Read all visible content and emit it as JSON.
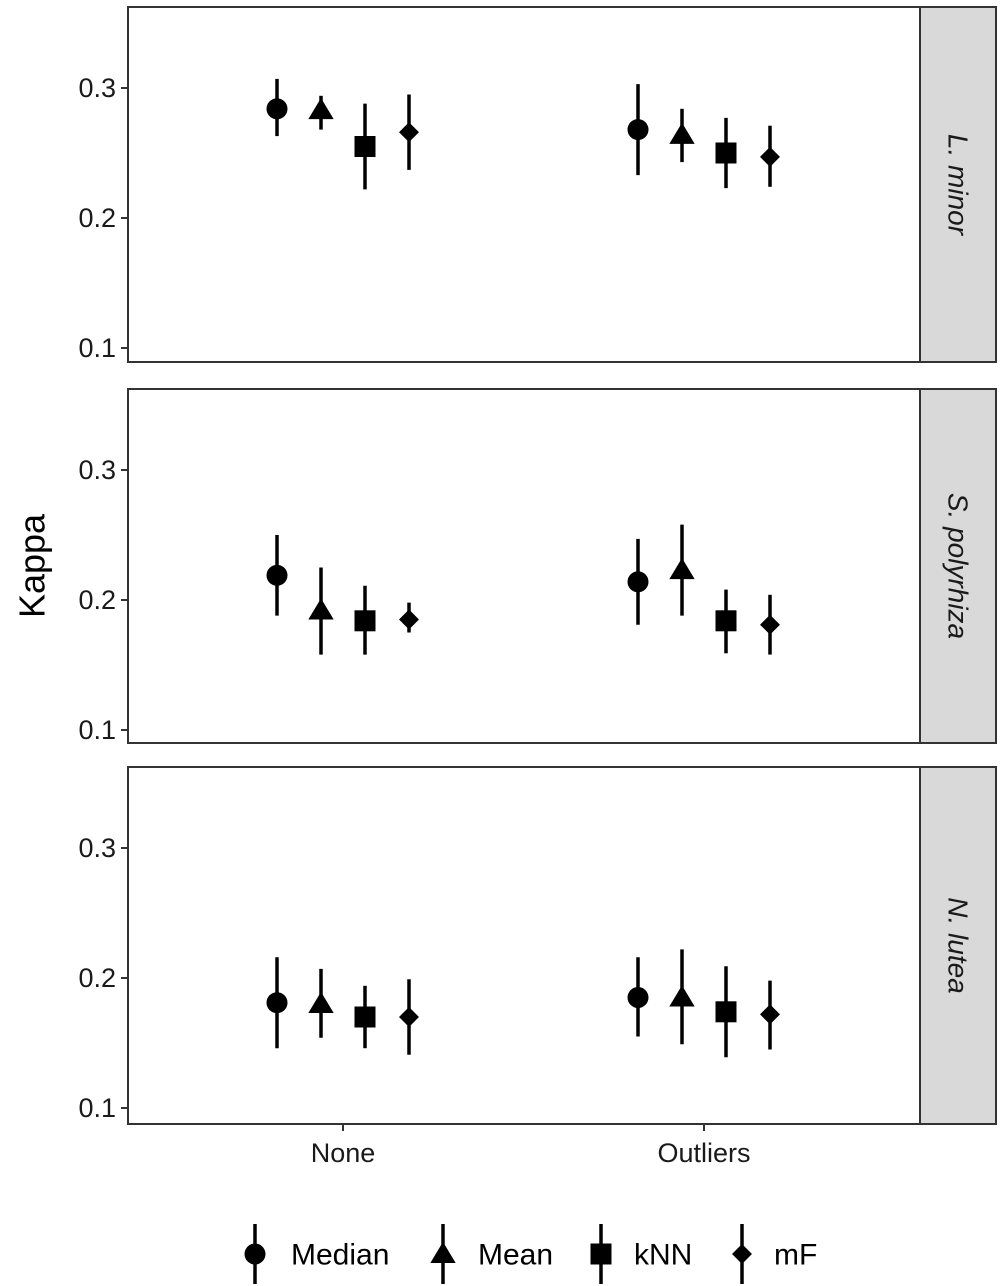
{
  "chart_data": {
    "type": "scatter",
    "subtype": "point-range, faceted by species",
    "ylabel": "Kappa",
    "xlabel": "",
    "categories": [
      "None",
      "Outliers"
    ],
    "yticks": [
      0.1,
      0.2,
      0.3
    ],
    "ytick_labels": [
      "0.1",
      "0.2",
      "0.3"
    ],
    "ylim": [
      0.09,
      0.36
    ],
    "grid": false,
    "legend_position": "bottom",
    "series_meta": [
      {
        "name": "Median",
        "shape": "circle"
      },
      {
        "name": "Mean",
        "shape": "triangle"
      },
      {
        "name": "kNN",
        "shape": "square"
      },
      {
        "name": "mF",
        "shape": "diamond"
      }
    ],
    "panels": [
      {
        "strip": "L. minor",
        "series": [
          {
            "name": "Median",
            "points": [
              {
                "x": "None",
                "y": 0.284,
                "ymin": 0.263,
                "ymax": 0.307
              },
              {
                "x": "Outliers",
                "y": 0.268,
                "ymin": 0.233,
                "ymax": 0.303
              }
            ]
          },
          {
            "name": "Mean",
            "points": [
              {
                "x": "None",
                "y": 0.283,
                "ymin": 0.268,
                "ymax": 0.294
              },
              {
                "x": "Outliers",
                "y": 0.264,
                "ymin": 0.243,
                "ymax": 0.284
              }
            ]
          },
          {
            "name": "kNN",
            "points": [
              {
                "x": "None",
                "y": 0.255,
                "ymin": 0.222,
                "ymax": 0.288
              },
              {
                "x": "Outliers",
                "y": 0.25,
                "ymin": 0.223,
                "ymax": 0.277
              }
            ]
          },
          {
            "name": "mF",
            "points": [
              {
                "x": "None",
                "y": 0.266,
                "ymin": 0.237,
                "ymax": 0.295
              },
              {
                "x": "Outliers",
                "y": 0.247,
                "ymin": 0.224,
                "ymax": 0.271
              }
            ]
          }
        ]
      },
      {
        "strip": "S. polyrhiza",
        "series": [
          {
            "name": "Median",
            "points": [
              {
                "x": "None",
                "y": 0.219,
                "ymin": 0.188,
                "ymax": 0.25
              },
              {
                "x": "Outliers",
                "y": 0.214,
                "ymin": 0.181,
                "ymax": 0.247
              }
            ]
          },
          {
            "name": "Mean",
            "points": [
              {
                "x": "None",
                "y": 0.192,
                "ymin": 0.158,
                "ymax": 0.225
              },
              {
                "x": "Outliers",
                "y": 0.223,
                "ymin": 0.188,
                "ymax": 0.258
              }
            ]
          },
          {
            "name": "kNN",
            "points": [
              {
                "x": "None",
                "y": 0.184,
                "ymin": 0.158,
                "ymax": 0.211
              },
              {
                "x": "Outliers",
                "y": 0.184,
                "ymin": 0.159,
                "ymax": 0.208
              }
            ]
          },
          {
            "name": "mF",
            "points": [
              {
                "x": "None",
                "y": 0.185,
                "ymin": 0.175,
                "ymax": 0.198
              },
              {
                "x": "Outliers",
                "y": 0.181,
                "ymin": 0.158,
                "ymax": 0.204
              }
            ]
          }
        ]
      },
      {
        "strip": "N. lutea",
        "series": [
          {
            "name": "Median",
            "points": [
              {
                "x": "None",
                "y": 0.181,
                "ymin": 0.146,
                "ymax": 0.216
              },
              {
                "x": "Outliers",
                "y": 0.185,
                "ymin": 0.155,
                "ymax": 0.216
              }
            ]
          },
          {
            "name": "Mean",
            "points": [
              {
                "x": "None",
                "y": 0.18,
                "ymin": 0.154,
                "ymax": 0.207
              },
              {
                "x": "Outliers",
                "y": 0.185,
                "ymin": 0.149,
                "ymax": 0.222
              }
            ]
          },
          {
            "name": "kNN",
            "points": [
              {
                "x": "None",
                "y": 0.17,
                "ymin": 0.146,
                "ymax": 0.194
              },
              {
                "x": "Outliers",
                "y": 0.174,
                "ymin": 0.139,
                "ymax": 0.209
              }
            ]
          },
          {
            "name": "mF",
            "points": [
              {
                "x": "None",
                "y": 0.17,
                "ymin": 0.141,
                "ymax": 0.199
              },
              {
                "x": "Outliers",
                "y": 0.172,
                "ymin": 0.145,
                "ymax": 0.198
              }
            ]
          }
        ]
      }
    ]
  }
}
